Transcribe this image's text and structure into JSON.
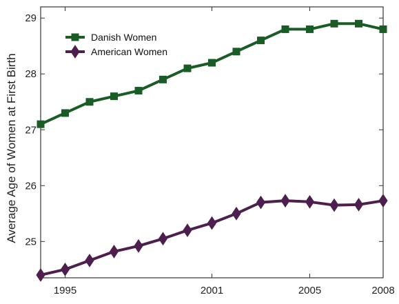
{
  "chart_data": {
    "type": "line",
    "title": "",
    "xlabel": "",
    "ylabel": "Average Age of Women at First Birth",
    "xlim": [
      1994,
      2008
    ],
    "ylim": [
      24.35,
      29.2
    ],
    "x_ticks": [
      {
        "value": 1995,
        "label": "1995"
      },
      {
        "value": 2001,
        "label": "2001"
      },
      {
        "value": 2005,
        "label": "2005"
      },
      {
        "value": 2008,
        "label": "2008"
      }
    ],
    "y_ticks": [
      {
        "value": 25,
        "label": "25"
      },
      {
        "value": 26,
        "label": "26"
      },
      {
        "value": 27,
        "label": "27"
      },
      {
        "value": 28,
        "label": "28"
      },
      {
        "value": 29,
        "label": "29"
      }
    ],
    "grid": false,
    "legend_position": "top-left",
    "x": [
      1994,
      1995,
      1996,
      1997,
      1998,
      1999,
      2000,
      2001,
      2002,
      2003,
      2004,
      2005,
      2006,
      2007,
      2008
    ],
    "series": [
      {
        "name": "Danish Women",
        "color": "#1a5c26",
        "marker": "square",
        "values": [
          27.1,
          27.3,
          27.5,
          27.6,
          27.7,
          27.9,
          28.1,
          28.2,
          28.4,
          28.6,
          28.8,
          28.8,
          28.9,
          28.9,
          28.8
        ]
      },
      {
        "name": "American Women",
        "color": "#4e1f4e",
        "marker": "diamond",
        "values": [
          24.4,
          24.5,
          24.66,
          24.82,
          24.92,
          25.05,
          25.2,
          25.33,
          25.5,
          25.7,
          25.73,
          25.71,
          25.65,
          25.66,
          25.73
        ]
      }
    ]
  }
}
